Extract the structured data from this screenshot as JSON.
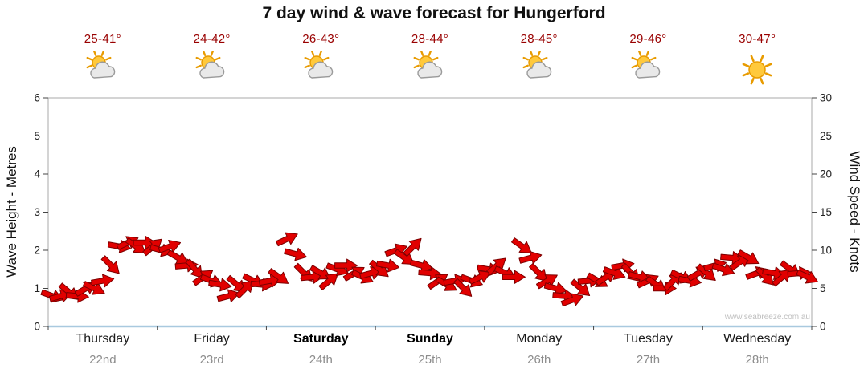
{
  "watermark": "www.seabreeze.com.au",
  "colors": {
    "temp_text": "#990000",
    "arrow": "#e10000",
    "arrow_outline": "#7c0000",
    "axis_frame": "#a8a8a8",
    "baseline": "#a9c9df",
    "tick": "#444444",
    "tick_text": "#222222",
    "day_name": "#1a1a1a",
    "date_text": "#8c8c8c",
    "watermark": "#bfbfbf",
    "sun": "#ffc93c",
    "sun_stroke": "#e89b00",
    "cloud": "#e9e9e9",
    "cloud_stroke": "#9a9a9a"
  },
  "chart_data": {
    "type": "scatter",
    "marker": "wind-arrow",
    "title": "7 day wind & wave forecast for Hungerford",
    "ylabel_left": "Wave Height - Metres",
    "ylabel_right": "Wind Speed - Knots",
    "ylim_left_metres": [
      0,
      6
    ],
    "ylim_right_knots": [
      0,
      30
    ],
    "left_ticks": [
      0,
      1,
      2,
      3,
      4,
      5,
      6
    ],
    "right_ticks": [
      0,
      5,
      10,
      15,
      20,
      25,
      30
    ],
    "days": [
      {
        "name": "Thursday",
        "date": "22nd",
        "temp": "25-41°",
        "icon": "sun-cloud",
        "bold": false
      },
      {
        "name": "Friday",
        "date": "23rd",
        "temp": "24-42°",
        "icon": "sun-cloud",
        "bold": false
      },
      {
        "name": "Saturday",
        "date": "24th",
        "temp": "26-43°",
        "icon": "sun-cloud",
        "bold": true
      },
      {
        "name": "Sunday",
        "date": "25th",
        "temp": "28-44°",
        "icon": "sun-cloud",
        "bold": true
      },
      {
        "name": "Monday",
        "date": "26th",
        "temp": "28-45°",
        "icon": "sun-cloud",
        "bold": false
      },
      {
        "name": "Tuesday",
        "date": "27th",
        "temp": "29-46°",
        "icon": "sun-cloud",
        "bold": false
      },
      {
        "name": "Wednesday",
        "date": "28th",
        "temp": "30-47°",
        "icon": "sun",
        "bold": false
      }
    ],
    "wind_knots": [
      4,
      4,
      4.5,
      4,
      5,
      5,
      6,
      8,
      10.5,
      11,
      10.5,
      11,
      10.5,
      10,
      10.5,
      9,
      8,
      7.5,
      6.5,
      6,
      5.5,
      4,
      5.5,
      5,
      6,
      5.5,
      6,
      6.5,
      11.5,
      9.5,
      7,
      6.5,
      7,
      6,
      7.5,
      8,
      7,
      6.5,
      7,
      7.5,
      8,
      10,
      9,
      10.5,
      8,
      7,
      6,
      5.5,
      6,
      5,
      6,
      6.5,
      7.5,
      8,
      7,
      6.5,
      10.5,
      9,
      7,
      6,
      5,
      4,
      3.5,
      5,
      6,
      6,
      6.5,
      7,
      8,
      7,
      6.5,
      6,
      5.5,
      5,
      6,
      6.5,
      6,
      7,
      7,
      8,
      7.5,
      9,
      8.5,
      9,
      7,
      6.5,
      7,
      6.5,
      7.5,
      7,
      6.5
    ],
    "wind_dir_deg": [
      20,
      -15,
      40,
      5,
      -30,
      25,
      -10,
      45,
      10,
      -25,
      35,
      0,
      -40,
      15,
      -20,
      30,
      -5,
      50,
      -35,
      20,
      10,
      -15,
      40,
      -45,
      25,
      5,
      -10,
      35,
      -25,
      15,
      45,
      -5,
      30,
      -40,
      20,
      0,
      -30,
      25,
      -15,
      40,
      10,
      -20,
      35,
      -45,
      15,
      5,
      -35,
      30,
      -10,
      45,
      20,
      -25,
      10,
      -40,
      25,
      0,
      35,
      -15,
      45,
      -30,
      15,
      5,
      -20,
      40,
      -5,
      30,
      -35,
      20,
      -10,
      45,
      15,
      -25,
      35,
      0,
      -45,
      25,
      10,
      -30,
      40,
      -15,
      20,
      5,
      -35,
      30,
      -20,
      45,
      10,
      -40,
      35,
      -5,
      25
    ]
  }
}
